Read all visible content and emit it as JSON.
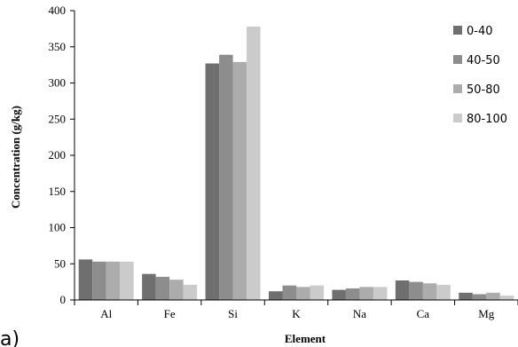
{
  "panel_label": "a)",
  "chart_data": {
    "type": "bar",
    "title": "",
    "xlabel": "Element",
    "ylabel": "Concentration  (g/kg)",
    "ylim": [
      0,
      400
    ],
    "yticks": [
      0,
      50,
      100,
      150,
      200,
      250,
      300,
      350,
      400
    ],
    "categories": [
      "Al",
      "Fe",
      "Si",
      "K",
      "Na",
      "Ca",
      "Mg"
    ],
    "series": [
      {
        "name": "0-40",
        "color": "#6f6f6f",
        "values": [
          56,
          36,
          327,
          12,
          14,
          27,
          10
        ]
      },
      {
        "name": "40-50",
        "color": "#8d8d8d",
        "values": [
          53,
          32,
          339,
          20,
          16,
          25,
          8
        ]
      },
      {
        "name": "50-80",
        "color": "#acacac",
        "values": [
          53,
          28,
          329,
          18,
          18,
          23,
          10
        ]
      },
      {
        "name": "80-100",
        "color": "#cbcbcb",
        "values": [
          53,
          21,
          378,
          20,
          18,
          21,
          6
        ]
      }
    ],
    "legend_position": "right",
    "grid": false
  }
}
